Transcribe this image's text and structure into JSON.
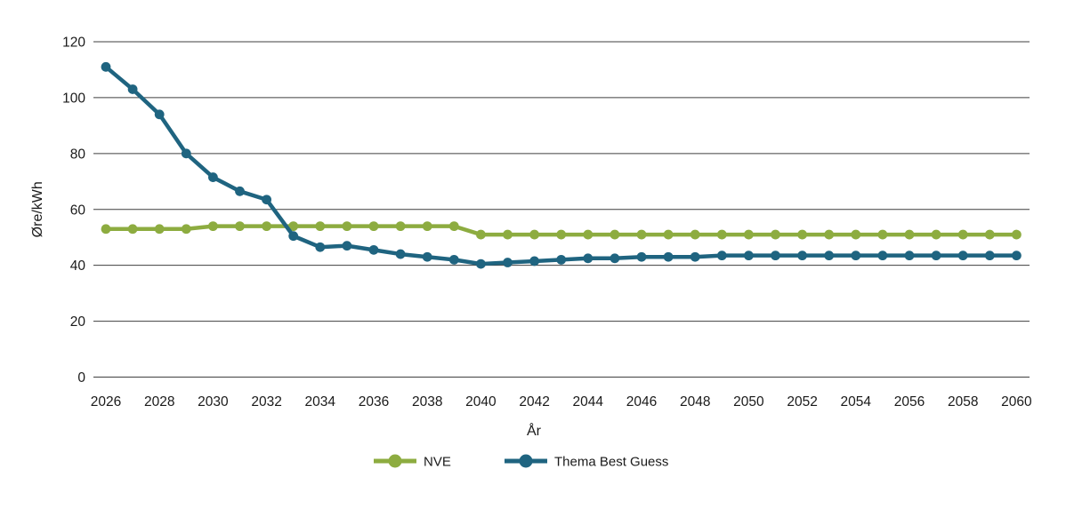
{
  "chart_data": {
    "type": "line",
    "title": "",
    "xlabel": "År",
    "ylabel": "Øre/kWh",
    "x": [
      2026,
      2027,
      2028,
      2029,
      2030,
      2031,
      2032,
      2033,
      2034,
      2035,
      2036,
      2037,
      2038,
      2039,
      2040,
      2041,
      2042,
      2043,
      2044,
      2045,
      2046,
      2047,
      2048,
      2049,
      2050,
      2051,
      2052,
      2053,
      2054,
      2055,
      2056,
      2057,
      2058,
      2059,
      2060
    ],
    "x_tick_labels": [
      "2026",
      "2028",
      "2030",
      "2032",
      "2034",
      "2036",
      "2038",
      "2040",
      "2042",
      "2044",
      "2046",
      "2048",
      "2050",
      "2052",
      "2054",
      "2056",
      "2058",
      "2060"
    ],
    "y_ticks": [
      0,
      20,
      40,
      60,
      80,
      100,
      120
    ],
    "ylim": [
      0,
      120
    ],
    "grid": "horizontal",
    "legend_position": "bottom-center",
    "series": [
      {
        "name": "NVE",
        "color": "#8DAC40",
        "values": [
          53,
          53,
          53,
          53,
          54,
          54,
          54,
          54,
          54,
          54,
          54,
          54,
          54,
          54,
          51,
          51,
          51,
          51,
          51,
          51,
          51,
          51,
          51,
          51,
          51,
          51,
          51,
          51,
          51,
          51,
          51,
          51,
          51,
          51,
          51
        ]
      },
      {
        "name": "Thema Best Guess",
        "color": "#1F6480",
        "values": [
          111,
          103,
          94,
          80,
          71.5,
          66.5,
          63.5,
          50.5,
          46.5,
          47,
          45.5,
          44,
          43,
          42,
          40.5,
          41,
          41.5,
          42,
          42.5,
          42.5,
          43,
          43,
          43,
          43.5,
          43.5,
          43.5,
          43.5,
          43.5,
          43.5,
          43.5,
          43.5,
          43.5,
          43.5,
          43.5,
          43.5
        ]
      }
    ]
  }
}
